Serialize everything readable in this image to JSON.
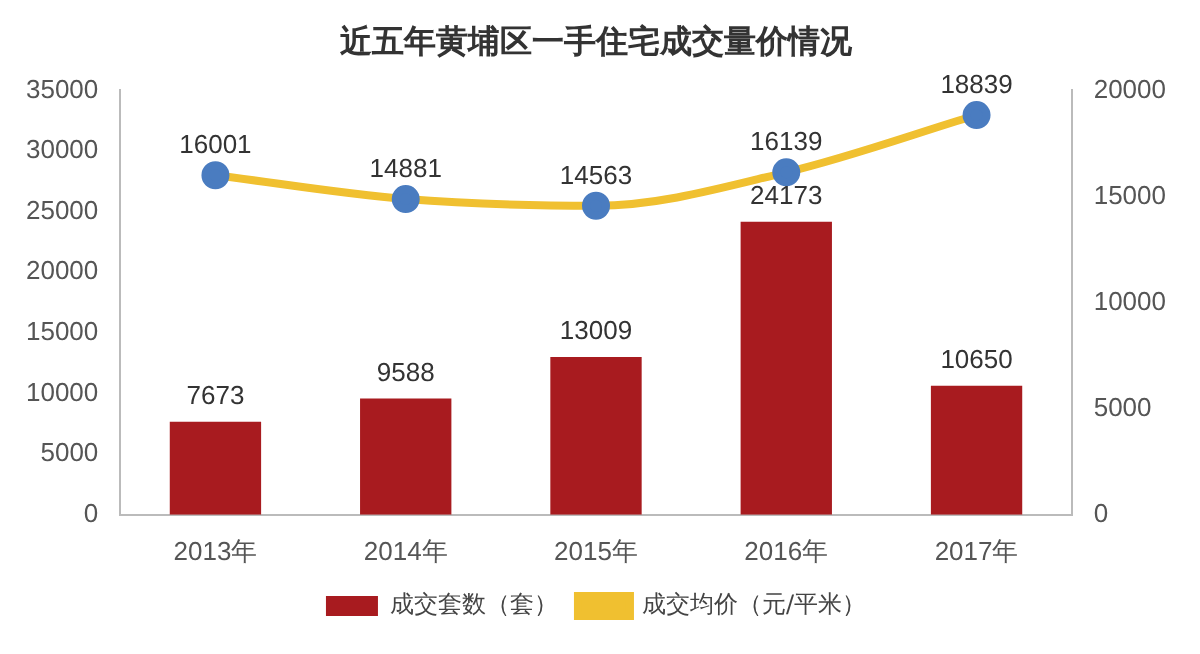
{
  "chart_data": {
    "type": "bar",
    "title": "近五年黄埔区一手住宅成交量价情况",
    "categories": [
      "2013年",
      "2014年",
      "2015年",
      "2016年",
      "2017年"
    ],
    "series": [
      {
        "name": "成交套数（套）",
        "color": "#a81b1f",
        "values": [
          7673,
          9588,
          13009,
          24173,
          10650
        ]
      },
      {
        "name": "成交均价（元/平米）",
        "type": "line",
        "axis": "y2",
        "color": "#f0c030",
        "values": [
          16001,
          14881,
          14563,
          16139,
          18839
        ]
      }
    ],
    "ylim": [
      0,
      35000
    ],
    "yticks": [
      0,
      5000,
      10000,
      15000,
      20000,
      25000,
      30000,
      35000
    ],
    "y2lim": [
      0,
      20000
    ],
    "y2ticks": [
      0,
      5000,
      10000,
      15000,
      20000
    ],
    "data_labels": true,
    "grid": false,
    "legend": "bottom",
    "marker": "circle"
  }
}
